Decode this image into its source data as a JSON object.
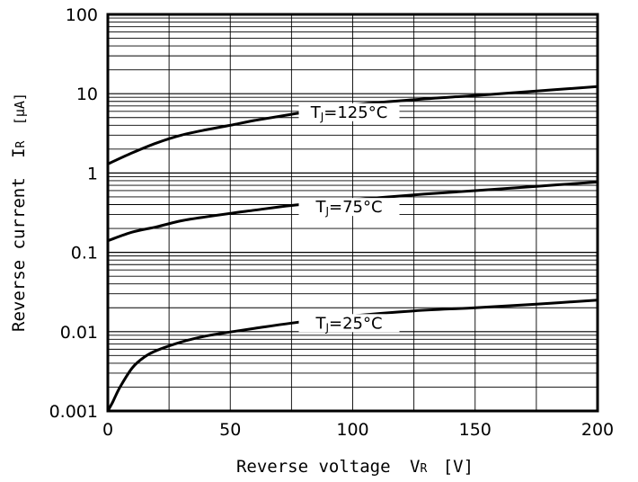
{
  "chart_data": {
    "type": "line",
    "xlabel": "Reverse voltage",
    "xlabel_symbol": "V",
    "xlabel_symbol_sub": "R",
    "xlabel_unit": "[V]",
    "ylabel": "Reverse current",
    "ylabel_symbol": "I",
    "ylabel_symbol_sub": "R",
    "ylabel_unit": "[μA]",
    "xlim": [
      0,
      200
    ],
    "ylim": [
      0.001,
      100
    ],
    "yscale": "log",
    "grid": true,
    "x_ticks": [
      0,
      50,
      100,
      150,
      200
    ],
    "x_tick_labels": [
      "0",
      "50",
      "100",
      "150",
      "200"
    ],
    "y_ticks": [
      0.001,
      0.01,
      0.1,
      1,
      10,
      100
    ],
    "y_tick_labels": [
      "0.001",
      "0.01",
      "0.1",
      "1",
      "10",
      "100"
    ],
    "series": [
      {
        "name": "TJ=125°C",
        "label_main": "T",
        "label_sub": "J",
        "label_rest": "=125°C",
        "label_x": 100,
        "x": [
          0,
          10,
          20,
          30,
          40,
          50,
          60,
          75,
          100,
          125,
          150,
          175,
          200
        ],
        "y": [
          1.3,
          1.8,
          2.4,
          3.0,
          3.5,
          4.0,
          4.6,
          5.5,
          7.2,
          8.4,
          9.5,
          10.8,
          12.3
        ]
      },
      {
        "name": "TJ=75°C",
        "label_main": "T",
        "label_sub": "J",
        "label_rest": "=75°C",
        "label_x": 100,
        "x": [
          0,
          10,
          20,
          30,
          40,
          50,
          60,
          75,
          100,
          125,
          150,
          175,
          200
        ],
        "y": [
          0.14,
          0.18,
          0.21,
          0.25,
          0.28,
          0.31,
          0.34,
          0.39,
          0.46,
          0.53,
          0.6,
          0.68,
          0.77
        ]
      },
      {
        "name": "TJ=25°C",
        "label_main": "T",
        "label_sub": "J",
        "label_rest": "=25°C",
        "label_x": 100,
        "x": [
          0,
          2,
          5,
          10,
          15,
          20,
          30,
          40,
          50,
          60,
          75,
          100,
          125,
          150,
          175,
          200
        ],
        "y": [
          0.001,
          0.0013,
          0.002,
          0.0035,
          0.0048,
          0.0058,
          0.0074,
          0.0088,
          0.0099,
          0.011,
          0.0128,
          0.0158,
          0.0183,
          0.02,
          0.0222,
          0.025
        ]
      }
    ]
  }
}
